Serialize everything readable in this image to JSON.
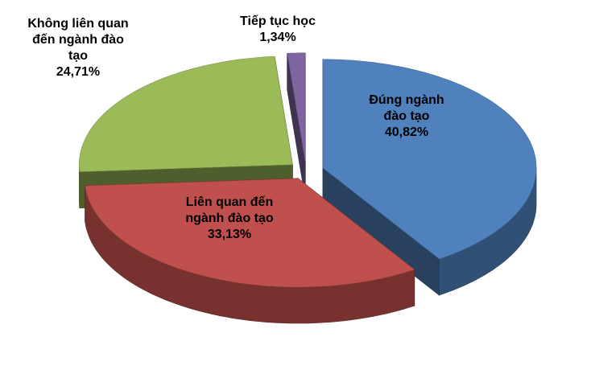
{
  "chart_data": {
    "type": "pie",
    "categories": [
      "Đúng ngành đào tạo",
      "Liên quan đến ngành đào tạo",
      "Không liên quan đến ngành đào tạo",
      "Tiếp tục học"
    ],
    "values": [
      40.82,
      33.13,
      24.71,
      1.34
    ],
    "value_labels": [
      "40,82%",
      "33,13%",
      "24,71%",
      "1,34%"
    ],
    "colors": [
      "#4f81bd",
      "#c0504d",
      "#9bbb59",
      "#8064a2"
    ]
  }
}
